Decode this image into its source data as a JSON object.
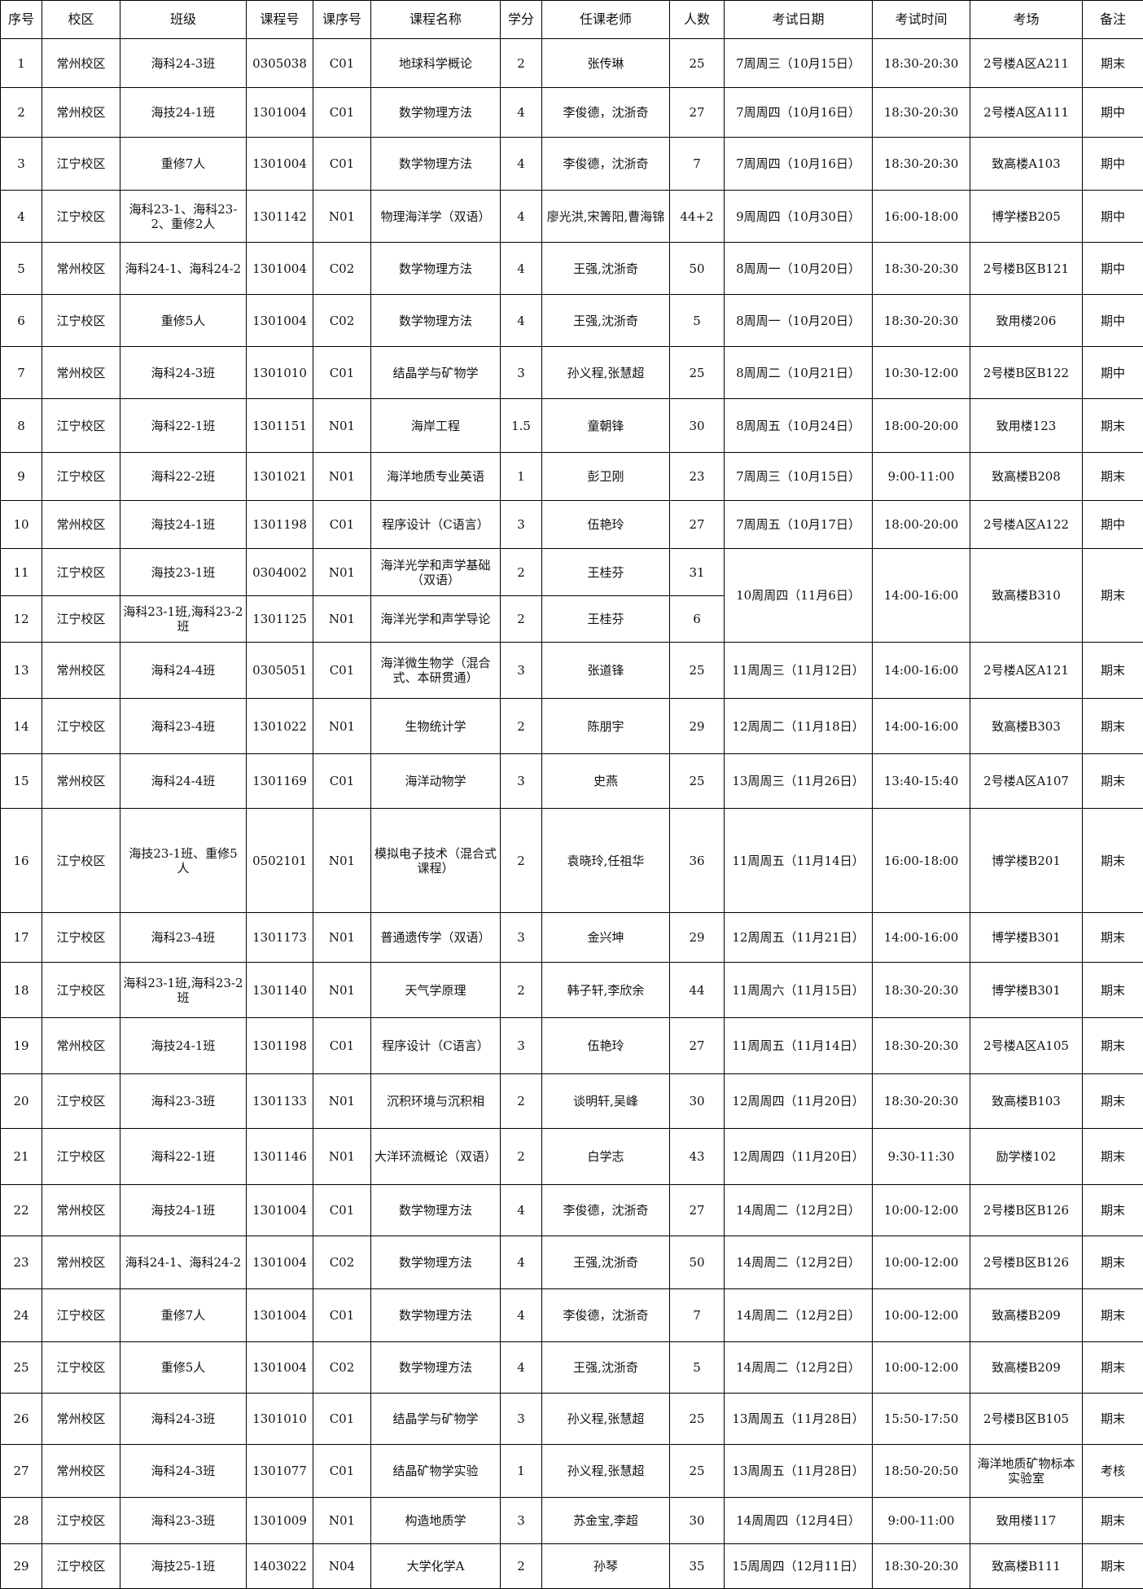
{
  "headers": [
    "序号",
    "校区",
    "班级",
    "课程号",
    "课序号",
    "课程名称",
    "学分",
    "任课老师",
    "人数",
    "考试日期",
    "考试时间",
    "考场",
    "备注"
  ],
  "rows": [
    [
      "1",
      "常州校区",
      "海科24-3班",
      "0305038",
      "C01",
      "地球科学概论",
      "2",
      "张传琳",
      "25",
      "7周周三（10月15日）",
      "18:30-20:30",
      "2号楼A区A211",
      "期末"
    ],
    [
      "2",
      "常州校区",
      "海技24-1班",
      "1301004",
      "C01",
      "数学物理方法",
      "4",
      "李俊德，沈浙奇",
      "27",
      "7周周四（10月16日）",
      "18:30-20:30",
      "2号楼A区A111",
      "期中"
    ],
    [
      "3",
      "江宁校区",
      "重修7人",
      "1301004",
      "C01",
      "数学物理方法",
      "4",
      "李俊德，沈浙奇",
      "7",
      "7周周四（10月16日）",
      "18:30-20:30",
      "致高楼A103",
      "期中"
    ],
    [
      "4",
      "江宁校区",
      "海科23-1、海科23-2、重修2人",
      "1301142",
      "N01",
      "物理海洋学（双语）",
      "4",
      "廖光洪,宋箐阳,曹海锦",
      "44+2",
      "9周周四（10月30日）",
      "16:00-18:00",
      "博学楼B205",
      "期中"
    ],
    [
      "5",
      "常州校区",
      "海科24-1、海科24-2",
      "1301004",
      "C02",
      "数学物理方法",
      "4",
      "王强,沈浙奇",
      "50",
      "8周周一（10月20日）",
      "18:30-20:30",
      "2号楼B区B121",
      "期中"
    ],
    [
      "6",
      "江宁校区",
      "重修5人",
      "1301004",
      "C02",
      "数学物理方法",
      "4",
      "王强,沈浙奇",
      "5",
      "8周周一（10月20日）",
      "18:30-20:30",
      "致用楼206",
      "期中"
    ],
    [
      "7",
      "常州校区",
      "海科24-3班",
      "1301010",
      "C01",
      "结晶学与矿物学",
      "3",
      "孙义程,张慧超",
      "25",
      "8周周二（10月21日）",
      "10:30-12:00",
      "2号楼B区B122",
      "期中"
    ],
    [
      "8",
      "江宁校区",
      "海科22-1班",
      "1301151",
      "N01",
      "海岸工程",
      "1.5",
      "童朝锋",
      "30",
      "8周周五（10月24日）",
      "18:00-20:00",
      "致用楼123",
      "期末"
    ],
    [
      "9",
      "江宁校区",
      "海科22-2班",
      "1301021",
      "N01",
      "海洋地质专业英语",
      "1",
      "彭卫刚",
      "23",
      "7周周三（10月15日）",
      "9:00-11:00",
      "致高楼B208",
      "期末"
    ],
    [
      "10",
      "常州校区",
      "海技24-1班",
      "1301198",
      "C01",
      "程序设计（C语言）",
      "3",
      "伍艳玲",
      "27",
      "7周周五（10月17日）",
      "18:00-20:00",
      "2号楼A区A122",
      "期中"
    ],
    [
      "11",
      "江宁校区",
      "海技23-1班",
      "0304002",
      "N01",
      "海洋光学和声学基础（双语）",
      "2",
      "王桂芬",
      "31",
      "10周周四（11月6日）",
      "14:00-16:00",
      "致高楼B310",
      "期末"
    ],
    [
      "12",
      "江宁校区",
      "海科23-1班,海科23-2班",
      "1301125",
      "N01",
      "海洋光学和声学导论",
      "2",
      "王桂芬",
      "6",
      "",
      "",
      "",
      ""
    ],
    [
      "13",
      "常州校区",
      "海科24-4班",
      "0305051",
      "C01",
      "海洋微生物学（混合式、本研贯通）",
      "3",
      "张道锋",
      "25",
      "11周周三（11月12日）",
      "14:00-16:00",
      "2号楼A区A121",
      "期末"
    ],
    [
      "14",
      "江宁校区",
      "海科23-4班",
      "1301022",
      "N01",
      "生物统计学",
      "2",
      "陈朋宇",
      "29",
      "12周周二（11月18日）",
      "14:00-16:00",
      "致高楼B303",
      "期末"
    ],
    [
      "15",
      "常州校区",
      "海科24-4班",
      "1301169",
      "C01",
      "海洋动物学",
      "3",
      "史燕",
      "25",
      "13周周三（11月26日）",
      "13:40-15:40",
      "2号楼A区A107",
      "期末"
    ],
    [
      "16",
      "江宁校区",
      "海技23-1班、重修5人",
      "0502101",
      "N01",
      "模拟电子技术（混合式课程）",
      "2",
      "袁晓玲,任祖华",
      "36",
      "11周周五（11月14日）",
      "16:00-18:00",
      "博学楼B201",
      "期末"
    ],
    [
      "17",
      "江宁校区",
      "海科23-4班",
      "1301173",
      "N01",
      "普通遗传学（双语）",
      "3",
      "金兴坤",
      "29",
      "12周周五（11月21日）",
      "14:00-16:00",
      "博学楼B301",
      "期末"
    ],
    [
      "18",
      "江宁校区",
      "海科23-1班,海科23-2班",
      "1301140",
      "N01",
      "天气学原理",
      "2",
      "韩子轩,李欣余",
      "44",
      "11周周六（11月15日）",
      "18:30-20:30",
      "博学楼B301",
      "期末"
    ],
    [
      "19",
      "常州校区",
      "海技24-1班",
      "1301198",
      "C01",
      "程序设计（C语言）",
      "3",
      "伍艳玲",
      "27",
      "11周周五（11月14日）",
      "18:30-20:30",
      "2号楼A区A105",
      "期末"
    ],
    [
      "20",
      "江宁校区",
      "海科23-3班",
      "1301133",
      "N01",
      "沉积环境与沉积相",
      "2",
      "谈明轩,吴峰",
      "30",
      "12周周四（11月20日）",
      "18:30-20:30",
      "致高楼B103",
      "期末"
    ],
    [
      "21",
      "江宁校区",
      "海科22-1班",
      "1301146",
      "N01",
      "大洋环流概论（双语）",
      "2",
      "白学志",
      "43",
      "12周周四（11月20日）",
      "9:30-11:30",
      "励学楼102",
      "期末"
    ],
    [
      "22",
      "常州校区",
      "海技24-1班",
      "1301004",
      "C01",
      "数学物理方法",
      "4",
      "李俊德，沈浙奇",
      "27",
      "14周周二（12月2日）",
      "10:00-12:00",
      "2号楼B区B126",
      "期末"
    ],
    [
      "23",
      "常州校区",
      "海科24-1、海科24-2",
      "1301004",
      "C02",
      "数学物理方法",
      "4",
      "王强,沈浙奇",
      "50",
      "14周周二（12月2日）",
      "10:00-12:00",
      "2号楼B区B126",
      "期末"
    ],
    [
      "24",
      "江宁校区",
      "重修7人",
      "1301004",
      "C01",
      "数学物理方法",
      "4",
      "李俊德，沈浙奇",
      "7",
      "14周周二（12月2日）",
      "10:00-12:00",
      "致高楼B209",
      "期末"
    ],
    [
      "25",
      "江宁校区",
      "重修5人",
      "1301004",
      "C02",
      "数学物理方法",
      "4",
      "王强,沈浙奇",
      "5",
      "14周周二（12月2日）",
      "10:00-12:00",
      "致高楼B209",
      "期末"
    ],
    [
      "26",
      "常州校区",
      "海科24-3班",
      "1301010",
      "C01",
      "结晶学与矿物学",
      "3",
      "孙义程,张慧超",
      "25",
      "13周周五（11月28日）",
      "15:50-17:50",
      "2号楼B区B105",
      "期末"
    ],
    [
      "27",
      "常州校区",
      "海科24-3班",
      "1301077",
      "C01",
      "结晶矿物学实验",
      "1",
      "孙义程,张慧超",
      "25",
      "13周周五（11月28日）",
      "18:50-20:50",
      "海洋地质矿物标本实验室",
      "考核"
    ],
    [
      "28",
      "江宁校区",
      "海科23-3班",
      "1301009",
      "N01",
      "构造地质学",
      "3",
      "苏金宝,李超",
      "30",
      "14周周四（12月4日）",
      "9:00-11:00",
      "致用楼117",
      "期末"
    ],
    [
      "29",
      "江宁校区",
      "海技25-1班",
      "1403022",
      "N04",
      "大学化学A",
      "2",
      "孙琴",
      "35",
      "15周周四（12月11日）",
      "18:30-20:30",
      "致高楼B111",
      "期末"
    ]
  ]
}
